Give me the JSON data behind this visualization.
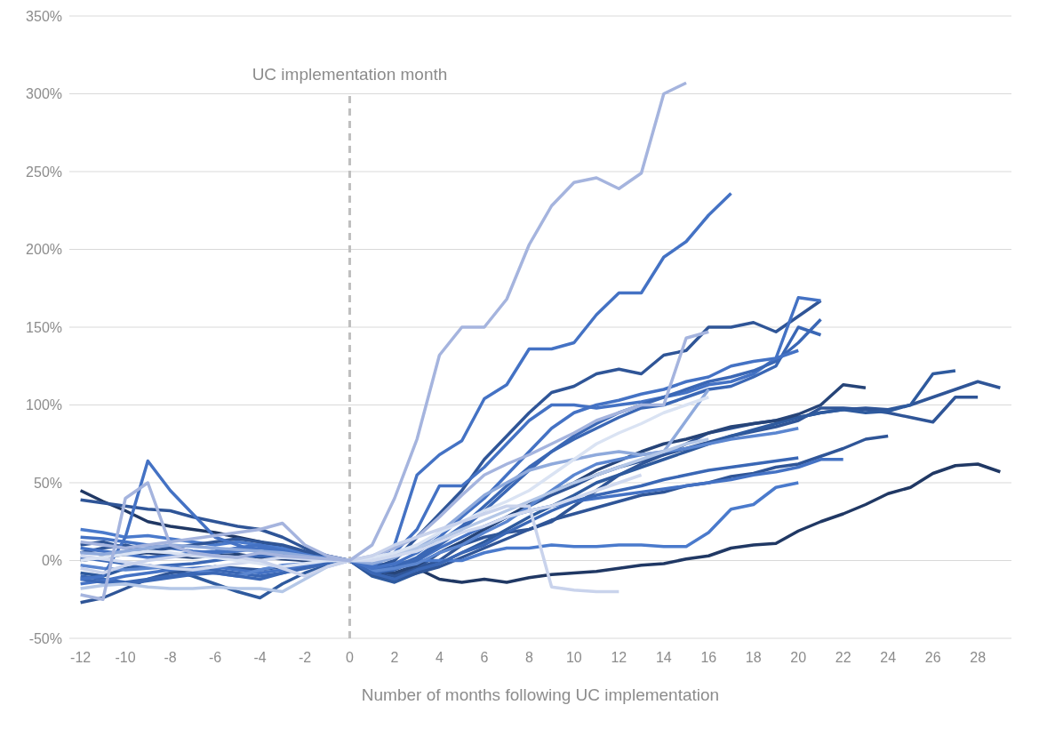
{
  "chart_data": {
    "type": "line",
    "xlabel": "Number of months following UC implementation",
    "x": [
      -12,
      -11,
      -10,
      -9,
      -8,
      -7,
      -6,
      -5,
      -4,
      -3,
      -2,
      -1,
      0,
      1,
      2,
      3,
      4,
      5,
      6,
      7,
      8,
      9,
      10,
      11,
      12,
      13,
      14,
      15,
      16,
      17,
      18,
      19,
      20,
      21,
      22,
      23,
      24,
      25,
      26,
      27,
      28,
      29
    ],
    "xlim": [
      -12.5,
      29.5
    ],
    "xticks": [
      -12,
      -10,
      -8,
      -6,
      -4,
      -2,
      0,
      2,
      4,
      6,
      8,
      10,
      12,
      14,
      16,
      18,
      20,
      22,
      24,
      26,
      28
    ],
    "ylim": [
      -50,
      350
    ],
    "yticks": [
      {
        "value": -50,
        "label": "-50%"
      },
      {
        "value": 0,
        "label": "0%"
      },
      {
        "value": 50,
        "label": "50%"
      },
      {
        "value": 100,
        "label": "100%"
      },
      {
        "value": 150,
        "label": "150%"
      },
      {
        "value": 200,
        "label": "200%"
      },
      {
        "value": 250,
        "label": "250%"
      },
      {
        "value": 300,
        "label": "300%"
      },
      {
        "value": 350,
        "label": "350%"
      }
    ],
    "grid": "y",
    "marker": "none",
    "line_style": "solid",
    "ref_lines": [
      {
        "axis": "x",
        "value": 0,
        "label": "UC implementation month",
        "color": "#bfbfbf",
        "line_style": "dashed"
      }
    ],
    "series": [
      {
        "color": "#203864",
        "values": [
          45,
          38,
          32,
          25,
          22,
          20,
          18,
          15,
          12,
          8,
          4,
          2,
          0,
          -8,
          -10,
          -5,
          -12,
          -14,
          -12,
          -14,
          -11,
          -9,
          -8,
          -7,
          -5,
          -3,
          -2,
          1,
          3,
          8,
          10,
          11,
          19,
          25,
          30,
          36,
          43,
          47,
          56,
          61,
          62,
          57
        ]
      },
      {
        "color": "#2f5597",
        "values": [
          39,
          37,
          35,
          33,
          32,
          28,
          25,
          22,
          20,
          15,
          8,
          3,
          0,
          -5,
          -10,
          -5,
          0,
          10,
          15,
          18,
          20,
          25,
          35,
          45,
          55,
          62,
          68,
          75,
          82,
          85,
          88,
          90,
          92,
          95,
          97,
          98,
          97,
          100,
          105,
          110,
          115,
          111
        ]
      },
      {
        "color": "#2f5597",
        "values": [
          5,
          8,
          10,
          6,
          4,
          3,
          5,
          8,
          10,
          6,
          4,
          2,
          0,
          -8,
          -12,
          -5,
          5,
          12,
          20,
          28,
          35,
          42,
          48,
          55,
          60,
          64,
          68,
          72,
          76,
          80,
          83,
          86,
          90,
          98,
          98,
          97,
          95,
          92,
          89,
          105,
          105,
          null
        ]
      },
      {
        "color": "#2e5a9e",
        "values": [
          -8,
          -10,
          -5,
          -3,
          -6,
          -10,
          -15,
          -20,
          -24,
          -15,
          -8,
          -3,
          0,
          -10,
          -14,
          -8,
          -2,
          5,
          12,
          20,
          28,
          35,
          42,
          50,
          55,
          60,
          65,
          70,
          75,
          80,
          84,
          88,
          92,
          95,
          97,
          95,
          96,
          100,
          120,
          122,
          null,
          null
        ]
      },
      {
        "color": "#264478",
        "values": [
          0,
          2,
          4,
          5,
          3,
          2,
          3,
          4,
          2,
          1,
          0,
          0,
          0,
          -6,
          -8,
          -3,
          5,
          12,
          20,
          28,
          36,
          44,
          50,
          58,
          64,
          70,
          75,
          78,
          82,
          86,
          88,
          90,
          94,
          100,
          113,
          111,
          null,
          null,
          null,
          null,
          null,
          null
        ]
      },
      {
        "color": "#2f5597",
        "values": [
          -27,
          -24,
          -18,
          -12,
          -8,
          -6,
          -4,
          -5,
          -6,
          -4,
          -2,
          -1,
          0,
          -9,
          -12,
          -8,
          -4,
          2,
          8,
          14,
          20,
          26,
          30,
          34,
          38,
          42,
          44,
          48,
          50,
          54,
          56,
          60,
          62,
          67,
          72,
          78,
          80,
          null,
          null,
          null,
          null,
          null
        ]
      },
      {
        "color": "#4472c4",
        "values": [
          15,
          14,
          12,
          10,
          8,
          6,
          5,
          6,
          8,
          6,
          4,
          2,
          0,
          -4,
          -5,
          0,
          8,
          15,
          22,
          28,
          32,
          35,
          38,
          40,
          42,
          44,
          46,
          48,
          50,
          52,
          55,
          57,
          60,
          65,
          65,
          null,
          null,
          null,
          null,
          null,
          null,
          null
        ]
      },
      {
        "color": "#4a7acc",
        "values": [
          20,
          18,
          15,
          16,
          14,
          12,
          10,
          12,
          10,
          8,
          5,
          2,
          0,
          -3,
          -2,
          0,
          0,
          0,
          5,
          8,
          8,
          10,
          9,
          9,
          10,
          10,
          9,
          9,
          18,
          33,
          36,
          47,
          50,
          null,
          null,
          null,
          null,
          null,
          null,
          null,
          null,
          null
        ]
      },
      {
        "color": "#2f5597",
        "values": [
          10,
          12,
          8,
          6,
          8,
          10,
          12,
          14,
          12,
          10,
          6,
          3,
          0,
          -5,
          0,
          15,
          30,
          45,
          65,
          80,
          95,
          108,
          112,
          120,
          123,
          120,
          132,
          135,
          150,
          150,
          153,
          147,
          157,
          167,
          null,
          null,
          null,
          null,
          null,
          null,
          null,
          null
        ]
      },
      {
        "color": "#4472c4",
        "values": [
          8,
          6,
          4,
          2,
          3,
          5,
          6,
          8,
          10,
          6,
          3,
          1,
          0,
          -4,
          5,
          20,
          48,
          48,
          60,
          75,
          90,
          100,
          100,
          98,
          100,
          102,
          105,
          108,
          113,
          115,
          120,
          130,
          169,
          167,
          null,
          null,
          null,
          null,
          null,
          null,
          null,
          null
        ]
      },
      {
        "color": "#3a67b5",
        "values": [
          -10,
          -12,
          -14,
          -12,
          -10,
          -8,
          -6,
          -8,
          -10,
          -8,
          -4,
          -2,
          0,
          -8,
          -6,
          0,
          10,
          20,
          32,
          45,
          58,
          70,
          80,
          88,
          95,
          100,
          105,
          110,
          115,
          118,
          122,
          128,
          140,
          155,
          null,
          null,
          null,
          null,
          null,
          null,
          null,
          null
        ]
      },
      {
        "color": "#3a67b5",
        "values": [
          2,
          0,
          -2,
          -4,
          -3,
          -2,
          0,
          2,
          3,
          2,
          1,
          0,
          0,
          -6,
          -4,
          2,
          12,
          22,
          35,
          48,
          60,
          70,
          78,
          85,
          92,
          98,
          100,
          105,
          110,
          112,
          118,
          125,
          150,
          145,
          null,
          null,
          null,
          null,
          null,
          null,
          null,
          null
        ]
      },
      {
        "color": "#4472c4",
        "values": [
          -15,
          -13,
          -10,
          -8,
          -6,
          -5,
          -4,
          -6,
          -8,
          -6,
          -3,
          -1,
          0,
          -5,
          -2,
          5,
          15,
          28,
          40,
          55,
          70,
          85,
          95,
          100,
          103,
          107,
          110,
          115,
          118,
          125,
          128,
          130,
          135,
          null,
          null,
          null,
          null,
          null,
          null,
          null,
          null,
          null
        ]
      },
      {
        "color": "#5b86d0",
        "values": [
          -3,
          -5,
          -6,
          -5,
          -4,
          -6,
          -8,
          -10,
          -6,
          -3,
          -2,
          -1,
          0,
          -7,
          -5,
          -2,
          5,
          10,
          18,
          25,
          35,
          45,
          55,
          62,
          65,
          68,
          70,
          72,
          75,
          78,
          80,
          82,
          85,
          null,
          null,
          null,
          null,
          null,
          null,
          null,
          null,
          null
        ]
      },
      {
        "color": "#3a67b5",
        "values": [
          -12,
          -14,
          -15,
          -13,
          -11,
          -9,
          -8,
          -10,
          -12,
          -8,
          -5,
          -2,
          0,
          -8,
          -12,
          -6,
          -2,
          5,
          10,
          18,
          25,
          32,
          38,
          42,
          45,
          48,
          52,
          55,
          58,
          60,
          62,
          64,
          66,
          null,
          null,
          null,
          null,
          null,
          null,
          null,
          null,
          null
        ]
      },
      {
        "color": "#4472c4",
        "values": [
          -12,
          -10,
          15,
          64,
          45,
          30,
          15,
          10,
          5,
          5,
          3,
          2,
          0,
          -5,
          10,
          55,
          68,
          77,
          104,
          113,
          136,
          136,
          140,
          158,
          172,
          172,
          195,
          205,
          222,
          236,
          null,
          null,
          null,
          null,
          null,
          null,
          null,
          null,
          null,
          null,
          null,
          null
        ]
      },
      {
        "color": "#8faadc",
        "values": [
          5,
          4,
          6,
          8,
          10,
          9,
          8,
          7,
          6,
          5,
          3,
          1,
          0,
          -2,
          2,
          8,
          18,
          30,
          42,
          50,
          58,
          62,
          65,
          68,
          70,
          68,
          70,
          90,
          110,
          null,
          null,
          null,
          null,
          null,
          null,
          null,
          null,
          null,
          null,
          null,
          null,
          null
        ]
      },
      {
        "color": "#b4c7e7",
        "values": [
          -18,
          -16,
          -15,
          -17,
          -18,
          -18,
          -17,
          -18,
          -18,
          -20,
          -12,
          -4,
          0,
          1,
          4,
          8,
          14,
          20,
          26,
          32,
          38,
          44,
          50,
          55,
          60,
          65,
          70,
          75,
          78,
          null,
          null,
          null,
          null,
          null,
          null,
          null,
          null,
          null,
          null,
          null,
          null,
          null
        ]
      },
      {
        "color": "#a5b4de",
        "values": [
          12,
          10,
          8,
          10,
          12,
          14,
          16,
          18,
          20,
          24,
          10,
          3,
          0,
          3,
          8,
          15,
          28,
          42,
          55,
          62,
          68,
          75,
          82,
          90,
          95,
          100,
          100,
          143,
          147,
          null,
          null,
          null,
          null,
          null,
          null,
          null,
          null,
          null,
          null,
          null,
          null,
          null
        ]
      },
      {
        "color": "#d0d9ef",
        "values": [
          3,
          1,
          -1,
          -3,
          -5,
          -6,
          -4,
          -2,
          0,
          2,
          1,
          0,
          0,
          0,
          3,
          6,
          12,
          18,
          22,
          28,
          32,
          35,
          40,
          45,
          50,
          55,
          null,
          null,
          null,
          null,
          null,
          null,
          null,
          null,
          null,
          null,
          null,
          null,
          null,
          null,
          null,
          null
        ]
      },
      {
        "color": "#dae3f3",
        "values": [
          0,
          2,
          4,
          6,
          5,
          3,
          2,
          0,
          -2,
          -4,
          -2,
          0,
          0,
          2,
          5,
          10,
          18,
          25,
          32,
          38,
          45,
          55,
          65,
          75,
          82,
          88,
          95,
          100,
          105,
          null,
          null,
          null,
          null,
          null,
          null,
          null,
          null,
          null,
          null,
          null,
          null,
          null
        ]
      },
      {
        "color": "#c9d3ec",
        "values": [
          -5,
          -8,
          -3,
          0,
          2,
          4,
          3,
          2,
          0,
          -5,
          -10,
          -4,
          0,
          3,
          10,
          15,
          20,
          25,
          30,
          35,
          35,
          -17,
          -19,
          -20,
          -20,
          null,
          null,
          null,
          null,
          null,
          null,
          null,
          null,
          null,
          null,
          null,
          null,
          null,
          null,
          null,
          null,
          null
        ]
      },
      {
        "color": "#a5b4de",
        "values": [
          -22,
          -25,
          40,
          50,
          10,
          5,
          3,
          2,
          5,
          3,
          2,
          1,
          0,
          10,
          40,
          78,
          132,
          150,
          150,
          168,
          203,
          228,
          243,
          246,
          239,
          249,
          300,
          307,
          null,
          null,
          null,
          null,
          null,
          null,
          null,
          null,
          null,
          null,
          null,
          null,
          null,
          null
        ]
      }
    ]
  }
}
